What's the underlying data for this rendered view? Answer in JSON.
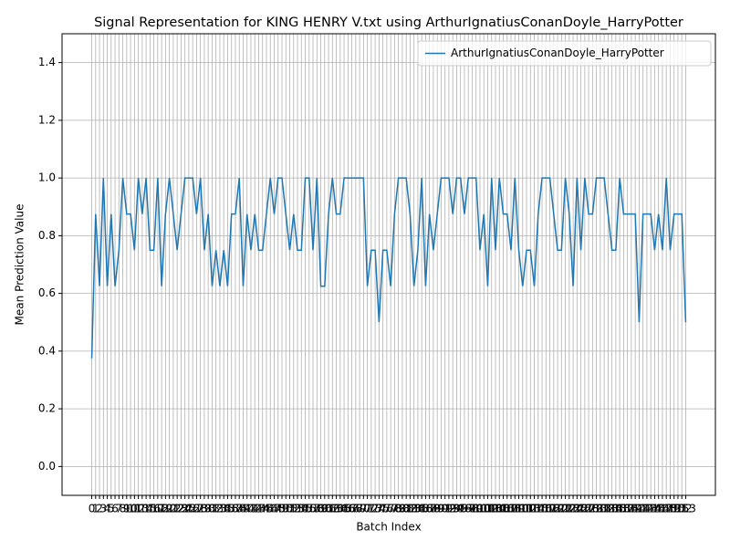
{
  "chart_data": {
    "type": "line",
    "title": "Signal Representation for KING HENRY V.txt using ArthurIgnatiusConanDoyle_HarryPotter",
    "x_label": "Batch Index",
    "y_label": "Mean Prediction Value",
    "x": [
      0,
      1,
      2,
      3,
      4,
      5,
      6,
      7,
      8,
      9,
      10,
      11,
      12,
      13,
      14,
      15,
      16,
      17,
      18,
      19,
      20,
      21,
      22,
      23,
      24,
      25,
      26,
      27,
      28,
      29,
      30,
      31,
      32,
      33,
      34,
      35,
      36,
      37,
      38,
      39,
      40,
      41,
      42,
      43,
      44,
      45,
      46,
      47,
      48,
      49,
      50,
      51,
      52,
      53,
      54,
      55,
      56,
      57,
      58,
      59,
      60,
      61,
      62,
      63,
      64,
      65,
      66,
      67,
      68,
      69,
      70,
      71,
      72,
      73,
      74,
      75,
      76,
      77,
      78,
      79,
      80,
      81,
      82,
      83,
      84,
      85,
      86,
      87,
      88,
      89,
      90,
      91,
      92,
      93,
      94,
      95,
      96,
      97,
      98,
      99,
      100,
      101,
      102,
      103,
      104,
      105,
      106,
      107,
      108,
      109,
      110,
      111,
      112,
      113,
      114,
      115,
      116,
      117,
      118,
      119,
      120,
      121,
      122,
      123,
      124,
      125,
      126,
      127,
      128,
      129,
      130,
      131,
      132,
      133,
      134,
      135,
      136,
      137,
      138,
      139,
      140,
      141,
      142,
      143,
      144,
      145,
      146,
      147,
      148,
      149,
      150,
      151,
      152,
      153
    ],
    "series": [
      {
        "name": "ArthurIgnatiusConanDoyle_HarryPotter",
        "color": "#1f77b4",
        "values": [
          0.375,
          0.875,
          0.625,
          1.0,
          0.625,
          0.875,
          0.625,
          0.75,
          1.0,
          0.875,
          0.875,
          0.75,
          1.0,
          0.875,
          1.0,
          0.75,
          0.75,
          1.0,
          0.625,
          0.875,
          1.0,
          0.875,
          0.75,
          0.875,
          1.0,
          1.0,
          1.0,
          0.875,
          1.0,
          0.75,
          0.875,
          0.625,
          0.75,
          0.625,
          0.75,
          0.625,
          0.875,
          0.875,
          1.0,
          0.625,
          0.875,
          0.75,
          0.875,
          0.75,
          0.75,
          0.875,
          1.0,
          0.875,
          1.0,
          1.0,
          0.875,
          0.75,
          0.875,
          0.75,
          0.75,
          1.0,
          1.0,
          0.75,
          1.0,
          0.625,
          0.625,
          0.875,
          1.0,
          0.875,
          0.875,
          1.0,
          1.0,
          1.0,
          1.0,
          1.0,
          1.0,
          0.625,
          0.75,
          0.75,
          0.5,
          0.75,
          0.75,
          0.625,
          0.875,
          1.0,
          1.0,
          1.0,
          0.875,
          0.625,
          0.75,
          1.0,
          0.625,
          0.875,
          0.75,
          0.875,
          1.0,
          1.0,
          1.0,
          0.875,
          1.0,
          1.0,
          0.875,
          1.0,
          1.0,
          1.0,
          0.75,
          0.875,
          0.625,
          1.0,
          0.75,
          1.0,
          0.875,
          0.875,
          0.75,
          1.0,
          0.75,
          0.625,
          0.75,
          0.75,
          0.625,
          0.875,
          1.0,
          1.0,
          1.0,
          0.875,
          0.75,
          0.75,
          1.0,
          0.875,
          0.625,
          1.0,
          0.75,
          1.0,
          0.875,
          0.875,
          1.0,
          1.0,
          1.0,
          0.875,
          0.75,
          0.75,
          1.0,
          0.875,
          0.875,
          0.875,
          0.875,
          0.5,
          0.875,
          0.875,
          0.875,
          0.75,
          0.875,
          0.75,
          1.0,
          0.75,
          0.875,
          0.875,
          0.875,
          0.5
        ]
      }
    ],
    "xlim": [
      -7.65,
      160.65
    ],
    "xticks": [
      0,
      1,
      2,
      3,
      4,
      5,
      6,
      7,
      8,
      9,
      10,
      11,
      12,
      13,
      14,
      15,
      16,
      17,
      18,
      19,
      20,
      21,
      22,
      23,
      24,
      25,
      26,
      27,
      28,
      29,
      30,
      31,
      32,
      33,
      34,
      35,
      36,
      37,
      38,
      39,
      40,
      41,
      42,
      43,
      44,
      45,
      46,
      47,
      48,
      49,
      50,
      51,
      52,
      53,
      54,
      55,
      56,
      57,
      58,
      59,
      60,
      61,
      62,
      63,
      64,
      65,
      66,
      67,
      68,
      69,
      70,
      71,
      72,
      73,
      74,
      75,
      76,
      77,
      78,
      79,
      80,
      81,
      82,
      83,
      84,
      85,
      86,
      87,
      88,
      89,
      90,
      91,
      92,
      93,
      94,
      95,
      96,
      97,
      98,
      99,
      100,
      101,
      102,
      103,
      104,
      105,
      106,
      107,
      108,
      109,
      110,
      111,
      112,
      113,
      114,
      115,
      116,
      117,
      118,
      119,
      120,
      121,
      122,
      123,
      124,
      125,
      126,
      127,
      128,
      129,
      130,
      131,
      132,
      133,
      134,
      135,
      136,
      137,
      138,
      139,
      140,
      141,
      142,
      143,
      144,
      145,
      146,
      147,
      148,
      149,
      150,
      151,
      152,
      153
    ],
    "ylim": [
      -0.1,
      1.5
    ],
    "yticks": [
      {
        "value": 0,
        "label": "0.0"
      },
      0.2,
      0.4,
      0.6,
      0.8,
      {
        "value": 1,
        "label": "1.0"
      },
      1.2,
      1.4
    ],
    "grid": true,
    "legend": "upper right"
  }
}
